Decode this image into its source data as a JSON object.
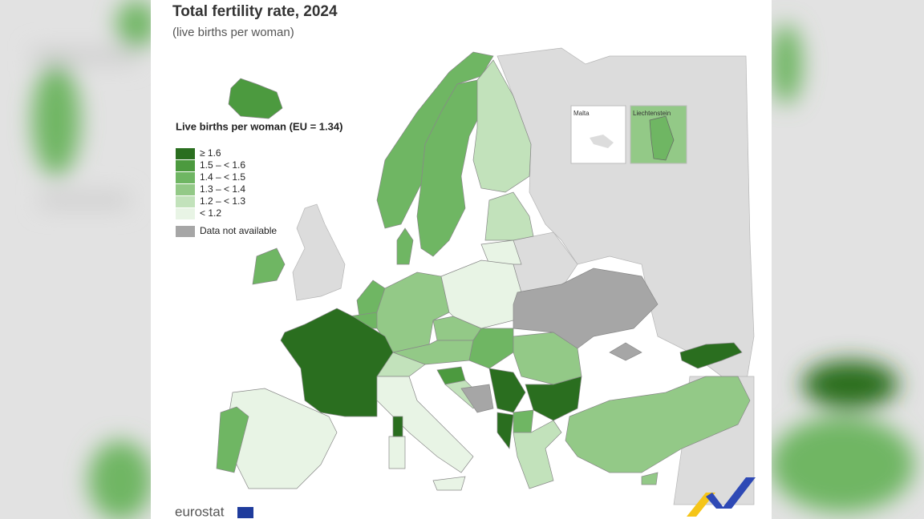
{
  "header": {
    "title": "Total fertility rate, 2024",
    "subtitle": "(live births per woman)"
  },
  "legend": {
    "title": "Live births per woman (EU = 1.34)",
    "items": [
      {
        "label": "≥ 1.6",
        "color": "#2a6e1f"
      },
      {
        "label": "1.5 – < 1.6",
        "color": "#4c9a3f"
      },
      {
        "label": "1.4 – < 1.5",
        "color": "#6fb663"
      },
      {
        "label": "1.3 – < 1.4",
        "color": "#93c987"
      },
      {
        "label": "1.2 – < 1.3",
        "color": "#c2e2bb"
      },
      {
        "label": "< 1.2",
        "color": "#e8f4e5"
      }
    ],
    "missing": {
      "label": "Data not available",
      "color": "#a6a6a6"
    }
  },
  "insets": [
    "Malta",
    "Liechtenstein"
  ],
  "footer": {
    "logo": "eurostat"
  }
}
